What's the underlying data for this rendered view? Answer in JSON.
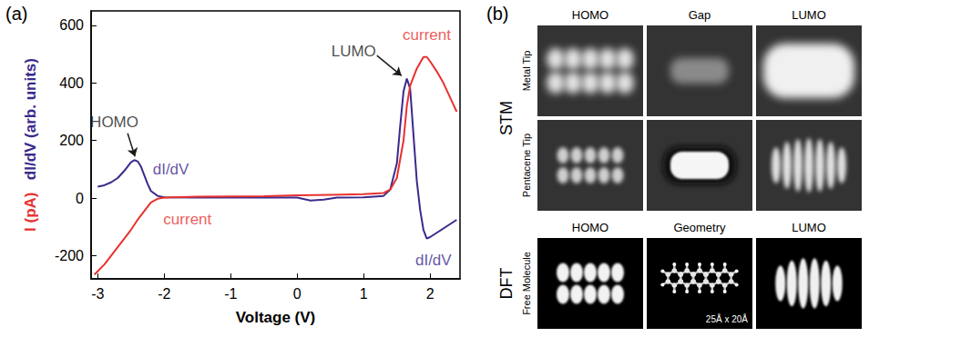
{
  "panel_labels": [
    "(a)",
    "(b)"
  ],
  "chart_data": {
    "type": "line",
    "xlabel": "Voltage (V)",
    "ylabel": [
      {
        "text": "I (pA)",
        "color": "#e8312f"
      },
      {
        "text": "dI/dV (arb. units)",
        "color": "#3a2a8c"
      }
    ],
    "xlim": [
      -3.1,
      2.45
    ],
    "xticks": [
      -3,
      -2,
      -1,
      0,
      1,
      2
    ],
    "ylim": [
      -280,
      650
    ],
    "yticks": [
      -200,
      0,
      200,
      400,
      600
    ],
    "grid": false,
    "series": [
      {
        "name": "dI/dV",
        "color": "#3a2a8c",
        "x": [
          -3.0,
          -2.9,
          -2.8,
          -2.7,
          -2.6,
          -2.5,
          -2.45,
          -2.4,
          -2.35,
          -2.3,
          -2.25,
          -2.2,
          -2.1,
          -2.0,
          -1.5,
          -1.0,
          -0.5,
          0,
          0.2,
          0.4,
          0.6,
          1.0,
          1.3,
          1.4,
          1.5,
          1.55,
          1.6,
          1.65,
          1.7,
          1.75,
          1.8,
          1.85,
          1.9,
          1.95,
          2.0,
          2.1,
          2.2,
          2.3,
          2.4
        ],
        "values": [
          40,
          45,
          55,
          70,
          95,
          125,
          132,
          128,
          110,
          80,
          50,
          25,
          8,
          3,
          2,
          2,
          3,
          2,
          -8,
          -5,
          2,
          3,
          8,
          30,
          120,
          250,
          370,
          415,
          380,
          220,
          60,
          -40,
          -110,
          -140,
          -135,
          -120,
          -105,
          -90,
          -75
        ]
      },
      {
        "name": "current",
        "color": "#e8312f",
        "x": [
          -3.05,
          -2.9,
          -2.8,
          -2.7,
          -2.6,
          -2.5,
          -2.4,
          -2.3,
          -2.2,
          -2.1,
          -2.0,
          -1.5,
          -1.0,
          -0.5,
          0,
          0.5,
          1.0,
          1.3,
          1.4,
          1.5,
          1.6,
          1.65,
          1.7,
          1.8,
          1.9,
          1.95,
          2.0,
          2.1,
          2.2,
          2.3,
          2.4
        ],
        "values": [
          -265,
          -230,
          -200,
          -170,
          -140,
          -110,
          -75,
          -45,
          -15,
          -2,
          2,
          5,
          6,
          7,
          10,
          12,
          14,
          18,
          30,
          70,
          200,
          320,
          390,
          450,
          490,
          490,
          475,
          440,
          400,
          350,
          300
        ]
      }
    ],
    "annotations": [
      {
        "text": "HOMO",
        "color": "#1a1a1a",
        "x": -2.75,
        "y": 265,
        "arrow_from": [
          -2.55,
          225
        ],
        "arrow_to": [
          -2.44,
          145
        ]
      },
      {
        "text": "dI/dV",
        "color": "#3a2a8c",
        "x": -1.9,
        "y": 100
      },
      {
        "text": "current",
        "color": "#e8312f",
        "x": -1.65,
        "y": -75
      },
      {
        "text": "LUMO",
        "color": "#1a1a1a",
        "x": 0.85,
        "y": 510,
        "arrow_from": [
          1.2,
          495
        ],
        "arrow_to": [
          1.57,
          425
        ]
      },
      {
        "text": "current",
        "color": "#e8312f",
        "x": 1.95,
        "y": 565
      },
      {
        "text": "dI/dV",
        "color": "#3a2a8c",
        "x": 2.05,
        "y": -215
      }
    ]
  },
  "stm": {
    "label": "STM",
    "columns": [
      "HOMO",
      "Gap",
      "LUMO"
    ],
    "rows": [
      "Metal Tip",
      "Pentacene Tip"
    ]
  },
  "dft": {
    "label": "DFT",
    "row": "Free Molecule",
    "columns": [
      "HOMO",
      "Geometry",
      "LUMO"
    ],
    "caption": "25Å x 20Å"
  }
}
